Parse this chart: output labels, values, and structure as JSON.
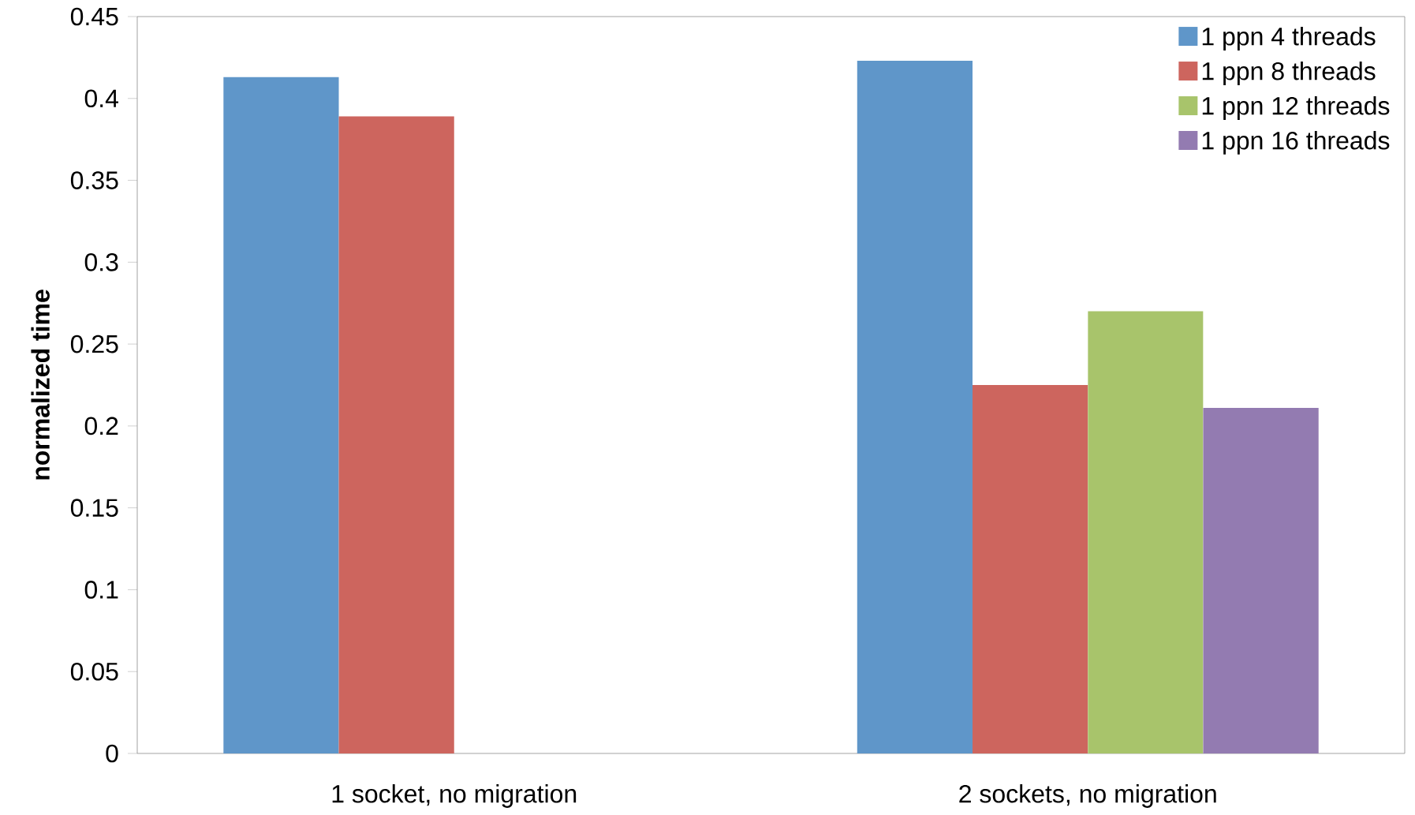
{
  "chart_data": {
    "type": "bar",
    "ylabel": "normalized time",
    "categories": [
      "1 socket, no migration",
      "2 sockets, no migration"
    ],
    "series": [
      {
        "name": "1 ppn 4 threads",
        "color": "#5f96c9",
        "values": [
          0.413,
          0.423
        ]
      },
      {
        "name": "1 ppn 8 threads",
        "color": "#cd655e",
        "values": [
          0.389,
          0.225
        ]
      },
      {
        "name": "1 ppn 12 threads",
        "color": "#a8c46b",
        "values": [
          null,
          0.27
        ]
      },
      {
        "name": "1 ppn 16 threads",
        "color": "#937bb1",
        "values": [
          null,
          0.211
        ]
      }
    ],
    "ylim": [
      0,
      0.45
    ],
    "yticks": [
      0,
      0.05,
      0.1,
      0.15,
      0.2,
      0.25,
      0.3,
      0.35,
      0.4,
      0.45
    ],
    "legend": "top right"
  }
}
